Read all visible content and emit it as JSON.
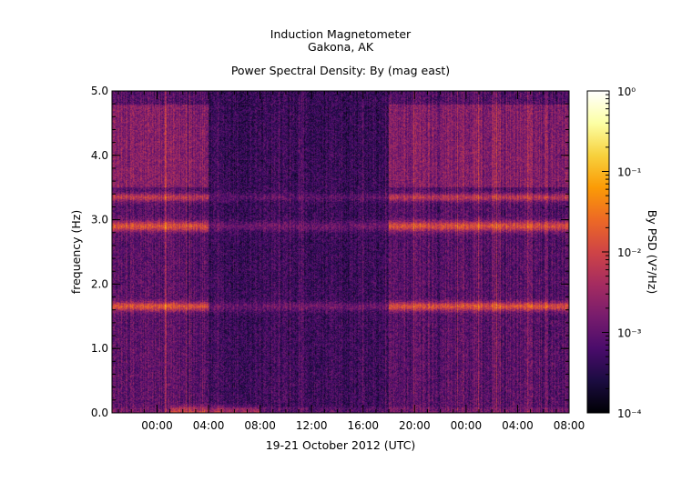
{
  "header": {
    "title_line1": "Induction Magnetometer",
    "title_line2": "Gakona, AK",
    "subtitle": "Power Spectral Density: By (mag east)"
  },
  "colors": {
    "background": "#ffffff",
    "colormap": [
      "#000004",
      "#1b0c41",
      "#4a0c6b",
      "#781c6d",
      "#a52c60",
      "#cf4446",
      "#ed6925",
      "#fb9b06",
      "#f7d13d",
      "#fcffa4",
      "#ffffff"
    ]
  },
  "chart_data": {
    "type": "heatmap",
    "title": "Power Spectral Density: By (mag east)",
    "xlabel": "19-21 October 2012 (UTC)",
    "ylabel": "frequency (Hz)",
    "x_tick_labels": [
      "00:00",
      "04:00",
      "08:00",
      "12:00",
      "16:00",
      "20:00",
      "00:00",
      "04:00",
      "08:00"
    ],
    "x_tick_hours": [
      0,
      4,
      8,
      12,
      16,
      20,
      24,
      28,
      32
    ],
    "xlim_hours": [
      -3.5,
      32
    ],
    "y_tick_labels": [
      "0.0",
      "1.0",
      "2.0",
      "3.0",
      "4.0",
      "5.0"
    ],
    "y_ticks": [
      0,
      1,
      2,
      3,
      4,
      5
    ],
    "ylim": [
      0,
      5
    ],
    "colorbar": {
      "label": "By PSD (V²/Hz)",
      "scale": "log",
      "range": [
        0.0001,
        1
      ],
      "tick_labels": [
        "10⁰",
        "10⁻¹",
        "10⁻²",
        "10⁻³",
        "10⁻⁴"
      ]
    },
    "spectral_bands_hz": [
      1.65,
      2.9,
      3.35
    ],
    "quiet_interval_hours": [
      4,
      18
    ]
  }
}
